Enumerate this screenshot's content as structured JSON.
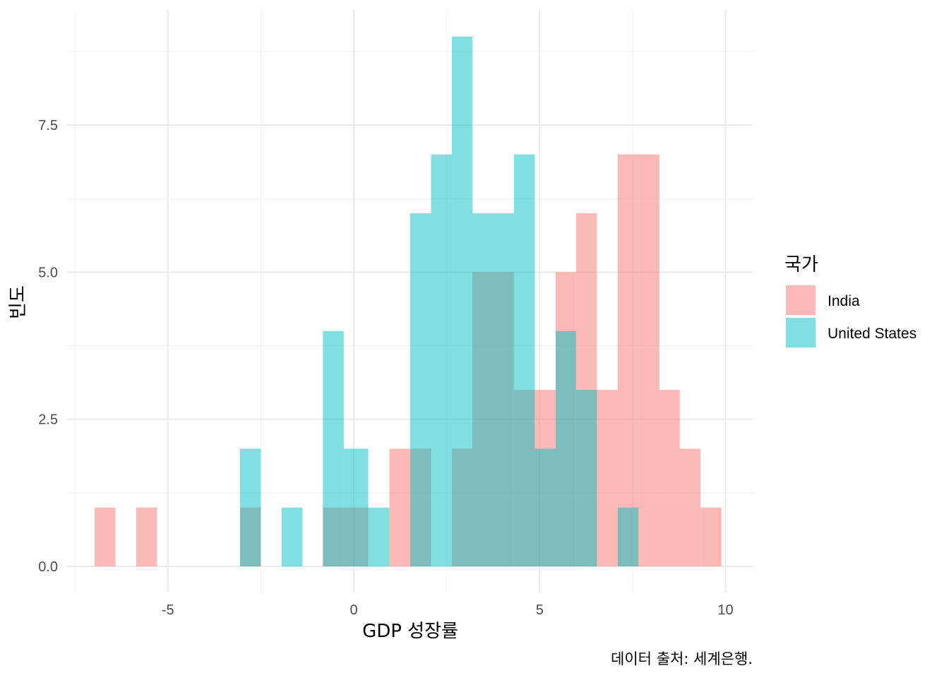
{
  "chart_data": {
    "type": "bar",
    "subtype": "overlapping-histogram",
    "title": "",
    "xlabel": "GDP 성장률",
    "ylabel": "빈도",
    "caption": "데이터 출처: 세계은행.",
    "xlim": [
      -7.5,
      10.6
    ],
    "ylim": [
      -0.8,
      9.4
    ],
    "x_ticks": [
      "-5",
      "0",
      "5",
      "10"
    ],
    "y_ticks": [
      "0.0",
      "2.5",
      "5.0",
      "7.5"
    ],
    "grid": true,
    "legend": {
      "title": "국가",
      "position": "right"
    },
    "bin_width": 0.558,
    "series": [
      {
        "name": "India",
        "color": "#F8766D",
        "bins": [
          {
            "x0": -6.97,
            "x1": -6.41,
            "count": 1
          },
          {
            "x0": -5.85,
            "x1": -5.29,
            "count": 1
          },
          {
            "x0": -3.06,
            "x1": -2.5,
            "count": 1
          },
          {
            "x0": -0.83,
            "x1": -0.27,
            "count": 1
          },
          {
            "x0": -0.27,
            "x1": 0.39,
            "count": 1
          },
          {
            "x0": 0.96,
            "x1": 1.52,
            "count": 2
          },
          {
            "x0": 1.52,
            "x1": 2.08,
            "count": 2
          },
          {
            "x0": 2.64,
            "x1": 3.19,
            "count": 2
          },
          {
            "x0": 3.19,
            "x1": 3.75,
            "count": 5
          },
          {
            "x0": 3.75,
            "x1": 4.31,
            "count": 5
          },
          {
            "x0": 4.31,
            "x1": 4.87,
            "count": 3
          },
          {
            "x0": 4.87,
            "x1": 5.43,
            "count": 3
          },
          {
            "x0": 5.43,
            "x1": 5.98,
            "count": 5
          },
          {
            "x0": 5.98,
            "x1": 6.54,
            "count": 6
          },
          {
            "x0": 6.54,
            "x1": 7.1,
            "count": 3
          },
          {
            "x0": 7.1,
            "x1": 7.66,
            "count": 7
          },
          {
            "x0": 7.66,
            "x1": 8.22,
            "count": 7
          },
          {
            "x0": 8.22,
            "x1": 8.77,
            "count": 3
          },
          {
            "x0": 8.77,
            "x1": 9.33,
            "count": 2
          },
          {
            "x0": 9.33,
            "x1": 9.89,
            "count": 1
          }
        ]
      },
      {
        "name": "United States",
        "color": "#00BFC4",
        "bins": [
          {
            "x0": -3.06,
            "x1": -2.5,
            "count": 2
          },
          {
            "x0": -1.94,
            "x1": -1.38,
            "count": 1
          },
          {
            "x0": -0.83,
            "x1": -0.27,
            "count": 4
          },
          {
            "x0": -0.27,
            "x1": 0.39,
            "count": 2
          },
          {
            "x0": 0.39,
            "x1": 0.96,
            "count": 1
          },
          {
            "x0": 1.52,
            "x1": 2.08,
            "count": 6
          },
          {
            "x0": 2.08,
            "x1": 2.64,
            "count": 7
          },
          {
            "x0": 2.64,
            "x1": 3.19,
            "count": 9
          },
          {
            "x0": 3.19,
            "x1": 3.75,
            "count": 6
          },
          {
            "x0": 3.75,
            "x1": 4.31,
            "count": 6
          },
          {
            "x0": 4.31,
            "x1": 4.87,
            "count": 7
          },
          {
            "x0": 4.87,
            "x1": 5.43,
            "count": 2
          },
          {
            "x0": 5.43,
            "x1": 5.98,
            "count": 4
          },
          {
            "x0": 5.98,
            "x1": 6.54,
            "count": 3
          },
          {
            "x0": 7.1,
            "x1": 7.66,
            "count": 1
          }
        ]
      }
    ],
    "bar_opacity": 0.5
  }
}
